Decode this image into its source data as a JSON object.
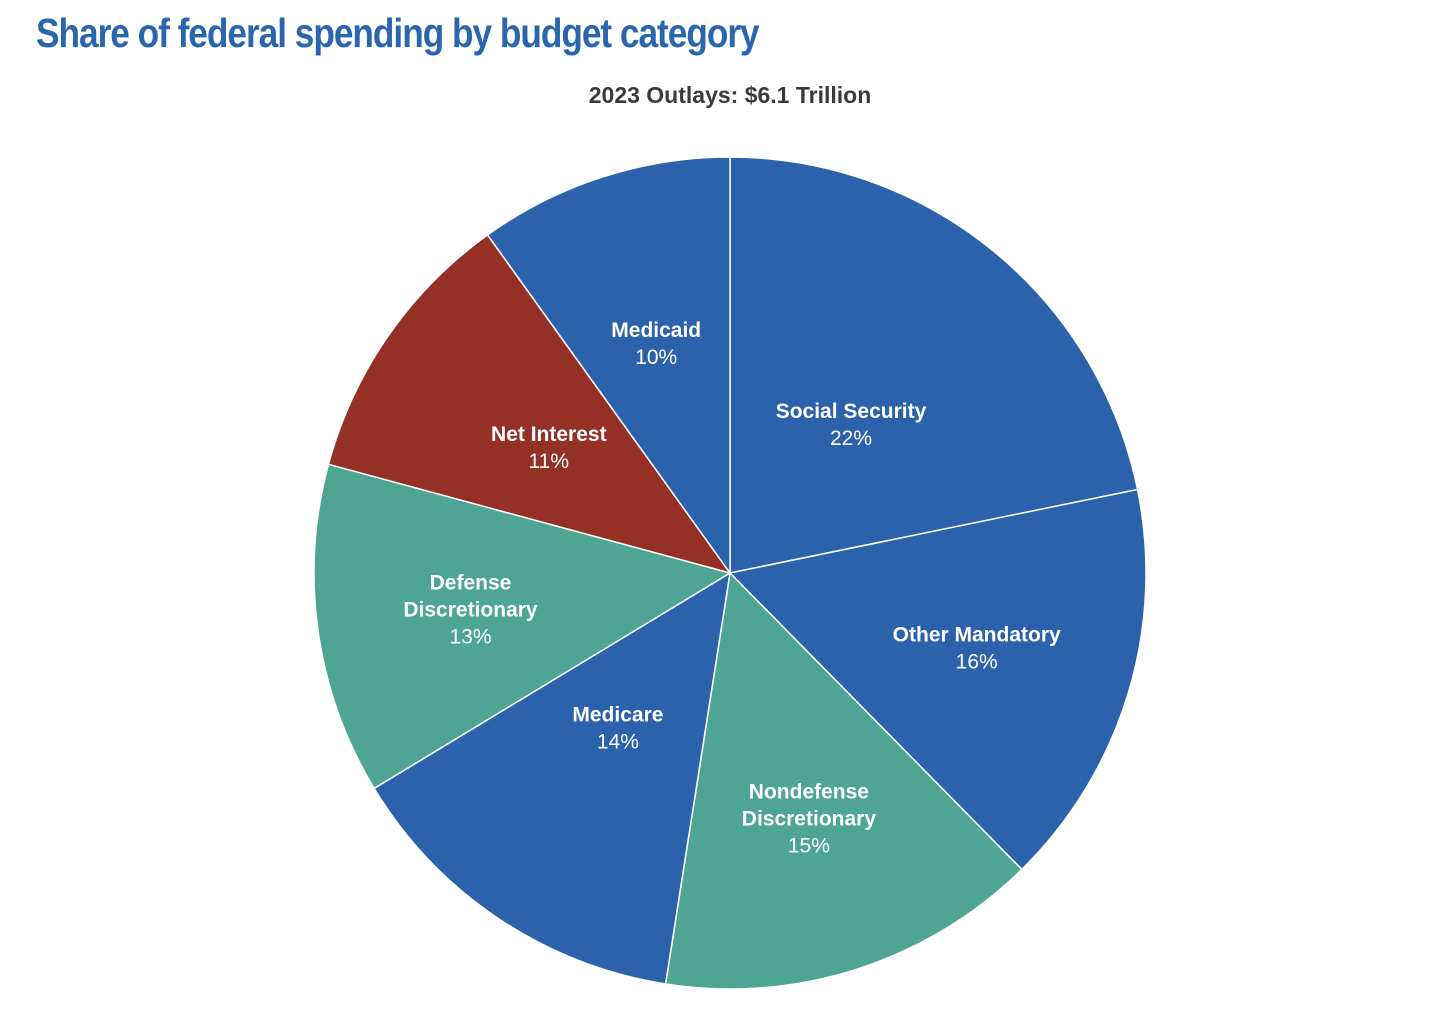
{
  "colors": {
    "title": "#2a66ae",
    "mandatory_blue": "#2b62ab",
    "discretionary_teal": "#4ea593",
    "interest_red": "#943026",
    "separator": "#ffffff"
  },
  "chart_data": {
    "type": "pie",
    "title": "Share of federal spending by budget category",
    "subtitle": "2023 Outlays: $6.1 Trillion",
    "unit": "%",
    "slices": [
      {
        "name": "social-security",
        "label_lines": [
          "Social Security"
        ],
        "value": 22,
        "value_label": "22%",
        "color": "#2b62ab"
      },
      {
        "name": "other-mandatory",
        "label_lines": [
          "Other Mandatory"
        ],
        "value": 16,
        "value_label": "16%",
        "color": "#2b62ab"
      },
      {
        "name": "nondefense-discretionary",
        "label_lines": [
          "Nondefense",
          "Discretionary"
        ],
        "value": 15,
        "value_label": "15%",
        "color": "#4ea593"
      },
      {
        "name": "medicare",
        "label_lines": [
          "Medicare"
        ],
        "value": 14,
        "value_label": "14%",
        "color": "#2b62ab"
      },
      {
        "name": "defense-discretionary",
        "label_lines": [
          "Defense",
          "Discretionary"
        ],
        "value": 13,
        "value_label": "13%",
        "color": "#4ea593"
      },
      {
        "name": "net-interest",
        "label_lines": [
          "Net Interest"
        ],
        "value": 11,
        "value_label": "11%",
        "color": "#943026"
      },
      {
        "name": "medicaid",
        "label_lines": [
          "Medicaid"
        ],
        "value": 10,
        "value_label": "10%",
        "color": "#2b62ab"
      }
    ]
  }
}
